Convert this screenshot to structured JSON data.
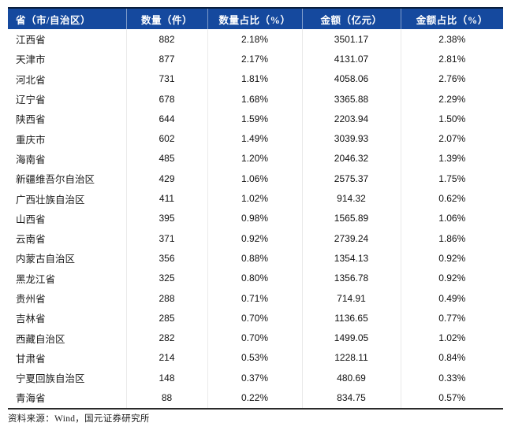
{
  "chart_data": {
    "type": "table",
    "headers": [
      "省（市/自治区）",
      "数量（件）",
      "数量占比（%）",
      "金额（亿元）",
      "金额占比（%）"
    ],
    "rows": [
      [
        "江西省",
        "882",
        "2.18%",
        "3501.17",
        "2.38%"
      ],
      [
        "天津市",
        "877",
        "2.17%",
        "4131.07",
        "2.81%"
      ],
      [
        "河北省",
        "731",
        "1.81%",
        "4058.06",
        "2.76%"
      ],
      [
        "辽宁省",
        "678",
        "1.68%",
        "3365.88",
        "2.29%"
      ],
      [
        "陕西省",
        "644",
        "1.59%",
        "2203.94",
        "1.50%"
      ],
      [
        "重庆市",
        "602",
        "1.49%",
        "3039.93",
        "2.07%"
      ],
      [
        "海南省",
        "485",
        "1.20%",
        "2046.32",
        "1.39%"
      ],
      [
        "新疆维吾尔自治区",
        "429",
        "1.06%",
        "2575.37",
        "1.75%"
      ],
      [
        "广西壮族自治区",
        "411",
        "1.02%",
        "914.32",
        "0.62%"
      ],
      [
        "山西省",
        "395",
        "0.98%",
        "1565.89",
        "1.06%"
      ],
      [
        "云南省",
        "371",
        "0.92%",
        "2739.24",
        "1.86%"
      ],
      [
        "内蒙古自治区",
        "356",
        "0.88%",
        "1354.13",
        "0.92%"
      ],
      [
        "黑龙江省",
        "325",
        "0.80%",
        "1356.78",
        "0.92%"
      ],
      [
        "贵州省",
        "288",
        "0.71%",
        "714.91",
        "0.49%"
      ],
      [
        "吉林省",
        "285",
        "0.70%",
        "1136.65",
        "0.77%"
      ],
      [
        "西藏自治区",
        "282",
        "0.70%",
        "1499.05",
        "1.02%"
      ],
      [
        "甘肃省",
        "214",
        "0.53%",
        "1228.11",
        "0.84%"
      ],
      [
        "宁夏回族自治区",
        "148",
        "0.37%",
        "480.69",
        "0.33%"
      ],
      [
        "青海省",
        "88",
        "0.22%",
        "834.75",
        "0.57%"
      ]
    ],
    "layout": {
      "grid": "light vertical dividers only",
      "header_align": "first column left, others center",
      "body_align": "first column left, others center"
    }
  },
  "footer": {
    "source": "资料来源：Wind，国元证券研究所"
  },
  "colors": {
    "header_bg": "#15499E",
    "header_text": "#FFFFFF",
    "top_border": "#0A1E3C",
    "bottom_border": "#2A2A2A",
    "column_divider": "#EAEAEA",
    "body_text": "#111111"
  }
}
